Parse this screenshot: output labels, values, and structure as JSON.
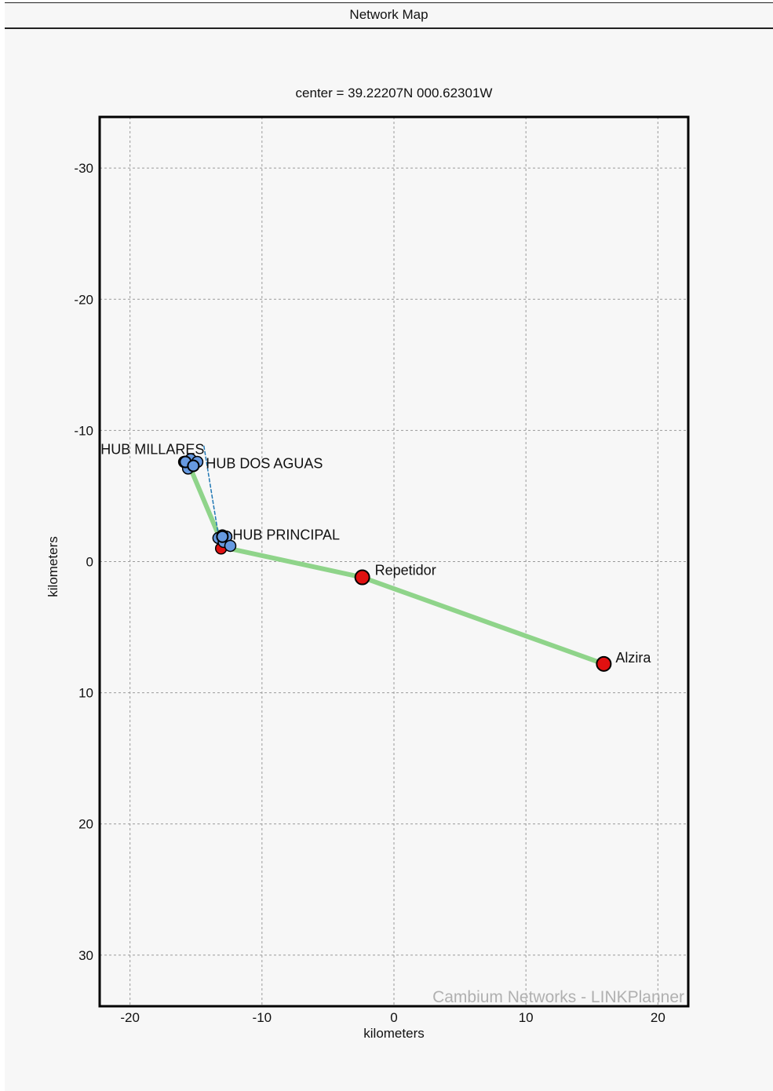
{
  "window": {
    "title": "Network Map"
  },
  "chart_data": {
    "type": "scatter",
    "title": "center = 39.22207N 000.62301W",
    "xlabel": "kilometers",
    "ylabel": "kilometers",
    "xlim": [
      -22.3,
      22.3
    ],
    "ylim": [
      -33.9,
      33.9
    ],
    "y_inverted": true,
    "grid": true,
    "xticks": [
      -20,
      -10,
      0,
      10,
      20
    ],
    "yticks": [
      -30,
      -20,
      -10,
      0,
      10,
      20,
      30
    ],
    "watermark": "Cambium Networks - LINKPlanner",
    "sites": [
      {
        "name": "HUB MILLARES",
        "x": -15.8,
        "y": -7.6,
        "color": "#6699e0"
      },
      {
        "name": "HUB DOS AGUAS",
        "x": -15.2,
        "y": -7.3,
        "color": "#6699e0"
      },
      {
        "name": "HUB PRINCIPAL",
        "x": -13.0,
        "y": -1.9,
        "color": "#6699e0"
      },
      {
        "name": "Repetidor",
        "x": -2.4,
        "y": 1.2,
        "color": "#e01010"
      },
      {
        "name": "Alzira",
        "x": 15.9,
        "y": 7.8,
        "color": "#e01010"
      }
    ],
    "cluster_points": [
      {
        "x": -15.9,
        "y": -7.6,
        "color": "#6699e0"
      },
      {
        "x": -15.4,
        "y": -7.8,
        "color": "#6699e0"
      },
      {
        "x": -15.5,
        "y": -7.3,
        "color": "#6699e0"
      },
      {
        "x": -14.9,
        "y": -7.6,
        "color": "#6699e0"
      },
      {
        "x": -15.6,
        "y": -7.1,
        "color": "#6699e0"
      },
      {
        "x": -13.1,
        "y": -1.0,
        "color": "#e01010"
      },
      {
        "x": -13.3,
        "y": -1.8,
        "color": "#6699e0"
      },
      {
        "x": -12.9,
        "y": -1.5,
        "color": "#6699e0"
      },
      {
        "x": -12.7,
        "y": -1.9,
        "color": "#6699e0"
      },
      {
        "x": -12.4,
        "y": -1.2,
        "color": "#6699e0"
      },
      {
        "x": -13.0,
        "y": -2.0,
        "color": "#6699e0"
      }
    ],
    "links": [
      {
        "from": [
          -15.5,
          -7.3
        ],
        "to": [
          -13.2,
          -1.8
        ],
        "style": "solid",
        "color": "#8fd48a"
      },
      {
        "from": [
          -12.5,
          -1.0
        ],
        "to": [
          -2.4,
          1.2
        ],
        "style": "solid",
        "color": "#8fd48a"
      },
      {
        "from": [
          -2.4,
          1.2
        ],
        "to": [
          15.9,
          7.8
        ],
        "style": "solid",
        "color": "#8fd48a"
      },
      {
        "from": [
          -14.4,
          -8.8
        ],
        "to": [
          -13.3,
          -2.0
        ],
        "style": "dashed",
        "color": "#1f77b4"
      }
    ]
  }
}
